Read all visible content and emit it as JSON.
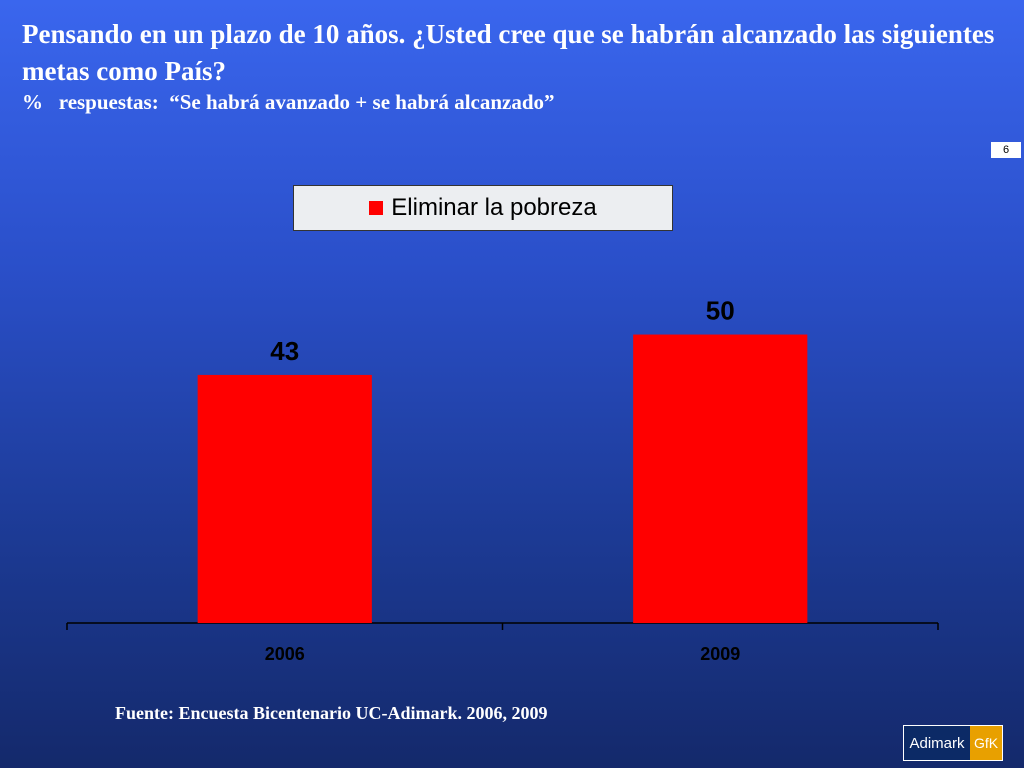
{
  "header": {
    "title": "Pensando en un plazo de 10 años. ¿Usted cree que se habrán alcanzado las siguientes  metas como País?",
    "subtitle": "%   respuestas:  “Se habrá avanzado + se habrá alcanzado”"
  },
  "page_number": "6",
  "footer": {
    "source": "Fuente: Encuesta Bicentenario UC-Adimark. 2006, 2009"
  },
  "logo": {
    "left_text": "Adimark",
    "right_text": "GfK"
  },
  "colors": {
    "bar": "#ff0000",
    "logo_left": "#0c2a66",
    "logo_right": "#e8a000"
  },
  "chart_data": {
    "type": "bar",
    "categories": [
      "2006",
      "2009"
    ],
    "series": [
      {
        "name": "Eliminar la pobreza",
        "values": [
          43,
          50
        ],
        "color": "#ff0000"
      }
    ],
    "data_labels": [
      "43",
      "50"
    ],
    "ylim": [
      0,
      65
    ],
    "legend_position": "top",
    "grid": false
  }
}
